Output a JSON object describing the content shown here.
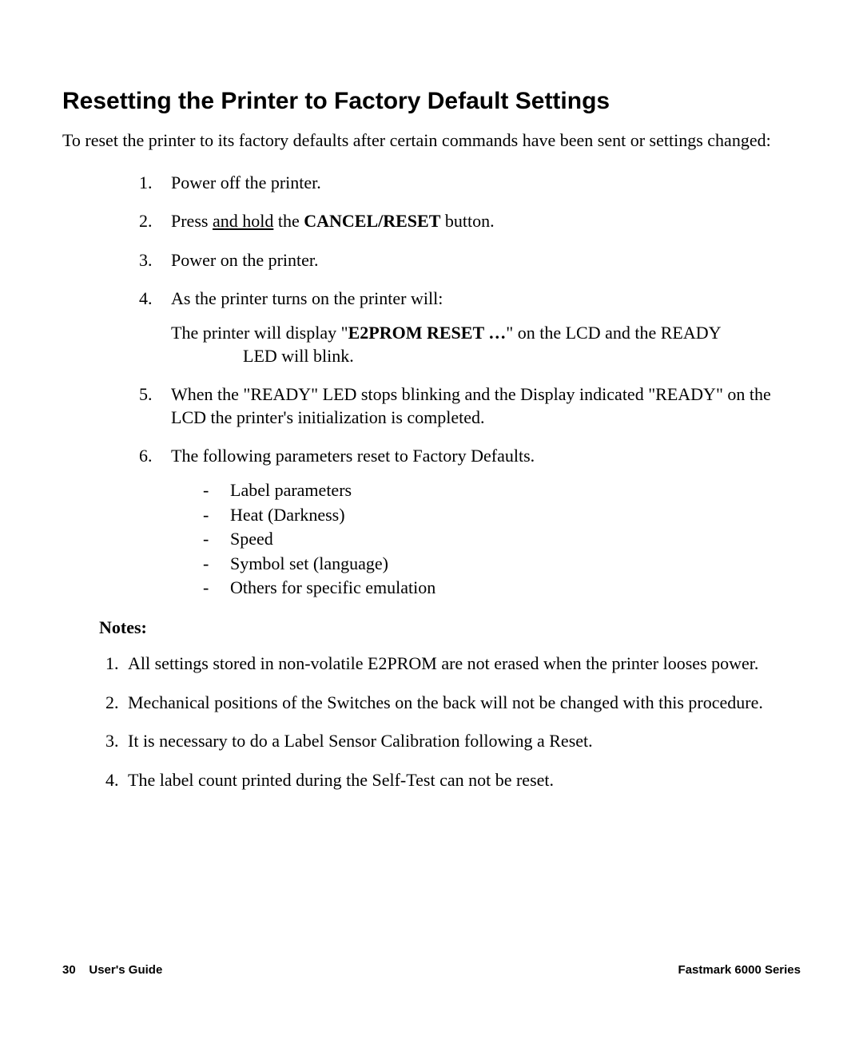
{
  "heading": "Resetting the Printer to Factory Default Settings",
  "intro": "To reset the printer to its factory defaults after certain commands have been sent or settings changed:",
  "steps": {
    "s1": "Power off the printer.",
    "s2_pre": "Press ",
    "s2_underline": "and hold",
    "s2_mid": " the ",
    "s2_bold": "CANCEL/RESET",
    "s2_post": " button.",
    "s3": "Power on the printer.",
    "s4": "As the printer turns on the printer will:",
    "s4_sub_pre": "The printer will display  \"",
    "s4_sub_bold": "E2PROM RESET …",
    "s4_sub_post": "\" on the LCD and the READY",
    "s4_sub_line2": "LED will blink.",
    "s5": "When the  \"READY\" LED stops blinking and the Display indicated \"READY\" on the LCD the printer's initialization is completed.",
    "s6": "The following parameters reset to Factory Defaults.",
    "params": {
      "p1": "Label parameters",
      "p2": "Heat (Darkness)",
      "p3": "Speed",
      "p4": "Symbol set (language)",
      "p5": "Others for specific emulation"
    }
  },
  "notes_label": "Notes:",
  "notes": {
    "n1": "All settings stored in non-volatile E2PROM are not erased when the printer looses power.",
    "n2": "Mechanical positions of the Switches on the back will not be changed with this procedure.",
    "n3": "It is necessary to do a Label Sensor Calibration following a Reset.",
    "n4": "The label count printed during the Self-Test can not be reset."
  },
  "footer": {
    "page_no": "30",
    "left_label": "User's Guide",
    "right_label": "Fastmark 6000 Series"
  }
}
